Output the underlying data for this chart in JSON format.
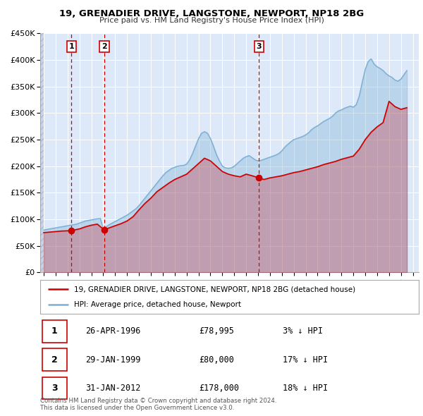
{
  "title": "19, GRENADIER DRIVE, LANGSTONE, NEWPORT, NP18 2BG",
  "subtitle": "Price paid vs. HM Land Registry's House Price Index (HPI)",
  "ylim": [
    0,
    450000
  ],
  "xlim_start": 1993.7,
  "xlim_end": 2025.5,
  "yticks": [
    0,
    50000,
    100000,
    150000,
    200000,
    250000,
    300000,
    350000,
    400000,
    450000
  ],
  "ytick_labels": [
    "£0",
    "£50K",
    "£100K",
    "£150K",
    "£200K",
    "£250K",
    "£300K",
    "£350K",
    "£400K",
    "£450K"
  ],
  "xticks": [
    1994,
    1995,
    1996,
    1997,
    1998,
    1999,
    2000,
    2001,
    2002,
    2003,
    2004,
    2005,
    2006,
    2007,
    2008,
    2009,
    2010,
    2011,
    2012,
    2013,
    2014,
    2015,
    2016,
    2017,
    2018,
    2019,
    2020,
    2021,
    2022,
    2023,
    2024,
    2025
  ],
  "bg_color": "#ffffff",
  "plot_bg_color": "#dde8f8",
  "hatch_bg_color": "#c8d4e8",
  "grid_color": "#ffffff",
  "red_color": "#cc0000",
  "blue_color": "#7bafd4",
  "sale_dates": [
    1996.32,
    1999.08,
    2012.08
  ],
  "sale_prices": [
    78995,
    80000,
    178000
  ],
  "sale_labels": [
    "1",
    "2",
    "3"
  ],
  "legend_line1": "19, GRENADIER DRIVE, LANGSTONE, NEWPORT, NP18 2BG (detached house)",
  "legend_line2": "HPI: Average price, detached house, Newport",
  "table_rows": [
    {
      "num": "1",
      "date": "26-APR-1996",
      "price": "£78,995",
      "hpi": "3% ↓ HPI"
    },
    {
      "num": "2",
      "date": "29-JAN-1999",
      "price": "£80,000",
      "hpi": "17% ↓ HPI"
    },
    {
      "num": "3",
      "date": "31-JAN-2012",
      "price": "£178,000",
      "hpi": "18% ↓ HPI"
    }
  ],
  "footnote": "Contains HM Land Registry data © Crown copyright and database right 2024.\nThis data is licensed under the Open Government Licence v3.0.",
  "hpi_years": [
    1994.0,
    1994.25,
    1994.5,
    1994.75,
    1995.0,
    1995.25,
    1995.5,
    1995.75,
    1996.0,
    1996.25,
    1996.5,
    1996.75,
    1997.0,
    1997.25,
    1997.5,
    1997.75,
    1998.0,
    1998.25,
    1998.5,
    1998.75,
    1999.0,
    1999.25,
    1999.5,
    1999.75,
    2000.0,
    2000.25,
    2000.5,
    2000.75,
    2001.0,
    2001.25,
    2001.5,
    2001.75,
    2002.0,
    2002.25,
    2002.5,
    2002.75,
    2003.0,
    2003.25,
    2003.5,
    2003.75,
    2004.0,
    2004.25,
    2004.5,
    2004.75,
    2005.0,
    2005.25,
    2005.5,
    2005.75,
    2006.0,
    2006.25,
    2006.5,
    2006.75,
    2007.0,
    2007.25,
    2007.5,
    2007.75,
    2008.0,
    2008.25,
    2008.5,
    2008.75,
    2009.0,
    2009.25,
    2009.5,
    2009.75,
    2010.0,
    2010.25,
    2010.5,
    2010.75,
    2011.0,
    2011.25,
    2011.5,
    2011.75,
    2012.0,
    2012.25,
    2012.5,
    2012.75,
    2013.0,
    2013.25,
    2013.5,
    2013.75,
    2014.0,
    2014.25,
    2014.5,
    2014.75,
    2015.0,
    2015.25,
    2015.5,
    2015.75,
    2016.0,
    2016.25,
    2016.5,
    2016.75,
    2017.0,
    2017.25,
    2017.5,
    2017.75,
    2018.0,
    2018.25,
    2018.5,
    2018.75,
    2019.0,
    2019.25,
    2019.5,
    2019.75,
    2020.0,
    2020.25,
    2020.5,
    2020.75,
    2021.0,
    2021.25,
    2021.5,
    2021.75,
    2022.0,
    2022.25,
    2022.5,
    2022.75,
    2023.0,
    2023.25,
    2023.5,
    2023.75,
    2024.0,
    2024.25,
    2024.5
  ],
  "hpi_values": [
    80000,
    81000,
    82000,
    83000,
    84000,
    85000,
    86000,
    87000,
    88000,
    89000,
    90000,
    91000,
    93000,
    95000,
    97000,
    98000,
    99000,
    100000,
    101000,
    101500,
    82000,
    86000,
    90000,
    93000,
    96000,
    99000,
    102000,
    105000,
    108000,
    112000,
    116000,
    120000,
    126000,
    133000,
    140000,
    147000,
    154000,
    161000,
    168000,
    175000,
    182000,
    188000,
    192000,
    196000,
    198000,
    200000,
    201000,
    201500,
    204000,
    212000,
    224000,
    238000,
    252000,
    262000,
    265000,
    262000,
    252000,
    238000,
    222000,
    210000,
    200000,
    197000,
    196000,
    197000,
    200000,
    205000,
    210000,
    215000,
    218000,
    220000,
    216000,
    212000,
    210000,
    211000,
    213000,
    215000,
    217000,
    219000,
    221000,
    224000,
    229000,
    236000,
    241000,
    246000,
    250000,
    252000,
    254000,
    256000,
    259000,
    263000,
    269000,
    273000,
    276000,
    280000,
    284000,
    287000,
    290000,
    294000,
    300000,
    304000,
    306000,
    309000,
    311000,
    313000,
    311000,
    316000,
    332000,
    358000,
    382000,
    397000,
    402000,
    392000,
    387000,
    384000,
    380000,
    374000,
    370000,
    367000,
    362000,
    360000,
    364000,
    372000,
    380000
  ],
  "price_years": [
    1994.0,
    1994.5,
    1995.0,
    1995.5,
    1996.0,
    1996.32,
    1997.0,
    1997.5,
    1998.0,
    1998.5,
    1999.08,
    1999.5,
    2000.0,
    2000.5,
    2001.0,
    2001.5,
    2002.0,
    2002.5,
    2003.0,
    2003.5,
    2004.0,
    2004.5,
    2005.0,
    2005.5,
    2006.0,
    2006.5,
    2007.0,
    2007.5,
    2008.0,
    2008.5,
    2009.0,
    2009.5,
    2010.0,
    2010.5,
    2011.0,
    2011.5,
    2012.08,
    2012.5,
    2013.0,
    2013.5,
    2014.0,
    2014.5,
    2015.0,
    2015.5,
    2016.0,
    2016.5,
    2017.0,
    2017.5,
    2018.0,
    2018.5,
    2019.0,
    2019.5,
    2020.0,
    2020.5,
    2021.0,
    2021.5,
    2022.0,
    2022.5,
    2023.0,
    2023.5,
    2024.0,
    2024.5
  ],
  "price_values": [
    75000,
    76000,
    77000,
    78000,
    78500,
    78995,
    82000,
    86000,
    89000,
    91000,
    80000,
    84000,
    88000,
    92000,
    97000,
    105000,
    118000,
    130000,
    140000,
    152000,
    160000,
    168000,
    175000,
    180000,
    185000,
    195000,
    205000,
    215000,
    210000,
    200000,
    190000,
    185000,
    182000,
    180000,
    185000,
    182000,
    178000,
    175000,
    178000,
    180000,
    182000,
    185000,
    188000,
    190000,
    193000,
    196000,
    199000,
    203000,
    206000,
    209000,
    213000,
    216000,
    219000,
    232000,
    250000,
    264000,
    274000,
    282000,
    322000,
    312000,
    307000,
    310000
  ]
}
